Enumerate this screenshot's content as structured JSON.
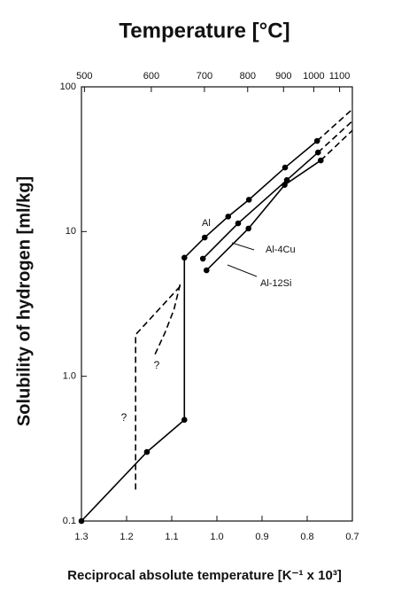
{
  "chart_data": {
    "type": "line",
    "title": "Temperature [°C]",
    "y_label": "Solubility of hydrogen [ml/kg]",
    "x_label": "Reciprocal absolute temperature [K⁻¹ x 10³]",
    "xlim": [
      1.3,
      0.7
    ],
    "xticks": [
      1.3,
      1.2,
      1.1,
      {
        "value": 1.0,
        "label": "1.0"
      },
      0.9,
      0.8,
      0.7
    ],
    "x2ticks": [
      500,
      600,
      700,
      800,
      900,
      1000,
      1100
    ],
    "ylim": [
      0.1,
      100
    ],
    "yticks": [
      0.1,
      {
        "value": 1,
        "label": "1.0"
      },
      10,
      100
    ],
    "y_scale": "log",
    "series": [
      {
        "name": "Al",
        "color": "#000000",
        "style": "solid",
        "marker": true,
        "x": [
          1.3,
          1.155,
          1.072,
          1.072,
          1.027,
          0.975,
          0.929,
          0.849,
          0.778
        ],
        "values": [
          0.1,
          0.3,
          0.5,
          6.6,
          9.1,
          12.7,
          16.6,
          27.7,
          42.3
        ]
      },
      {
        "name": "Al-4Cu",
        "color": "#000000",
        "style": "solid",
        "marker": true,
        "x": [
          1.031,
          0.953,
          0.845,
          0.776
        ],
        "values": [
          6.5,
          11.4,
          22.7,
          35.2
        ]
      },
      {
        "name": "Al-12Si",
        "color": "#000000",
        "style": "solid",
        "marker": true,
        "x": [
          1.023,
          0.93,
          0.85,
          0.77
        ],
        "values": [
          5.4,
          10.5,
          21,
          31
        ]
      },
      {
        "color": "#000000",
        "style": "dashed",
        "marker": false,
        "x": [
          0.778,
          0.7
        ],
        "values": [
          42.3,
          70
        ]
      },
      {
        "color": "#000000",
        "style": "dashed",
        "marker": false,
        "x": [
          0.776,
          0.7
        ],
        "values": [
          35.2,
          58
        ]
      },
      {
        "color": "#000000",
        "style": "dashed",
        "marker": false,
        "x": [
          0.77,
          0.7
        ],
        "values": [
          31,
          50
        ]
      },
      {
        "color": "#000000",
        "style": "dashed",
        "marker": false,
        "x": [
          1.18,
          1.18,
          1.078
        ],
        "values": [
          0.165,
          1.94,
          4.3
        ]
      },
      {
        "color": "#000000",
        "style": "dashed",
        "marker": false,
        "x": [
          1.137,
          1.115,
          1.095,
          1.08
        ],
        "values": [
          1.42,
          2.0,
          2.9,
          4.5
        ]
      }
    ],
    "annotations": [
      "?",
      "?"
    ]
  }
}
